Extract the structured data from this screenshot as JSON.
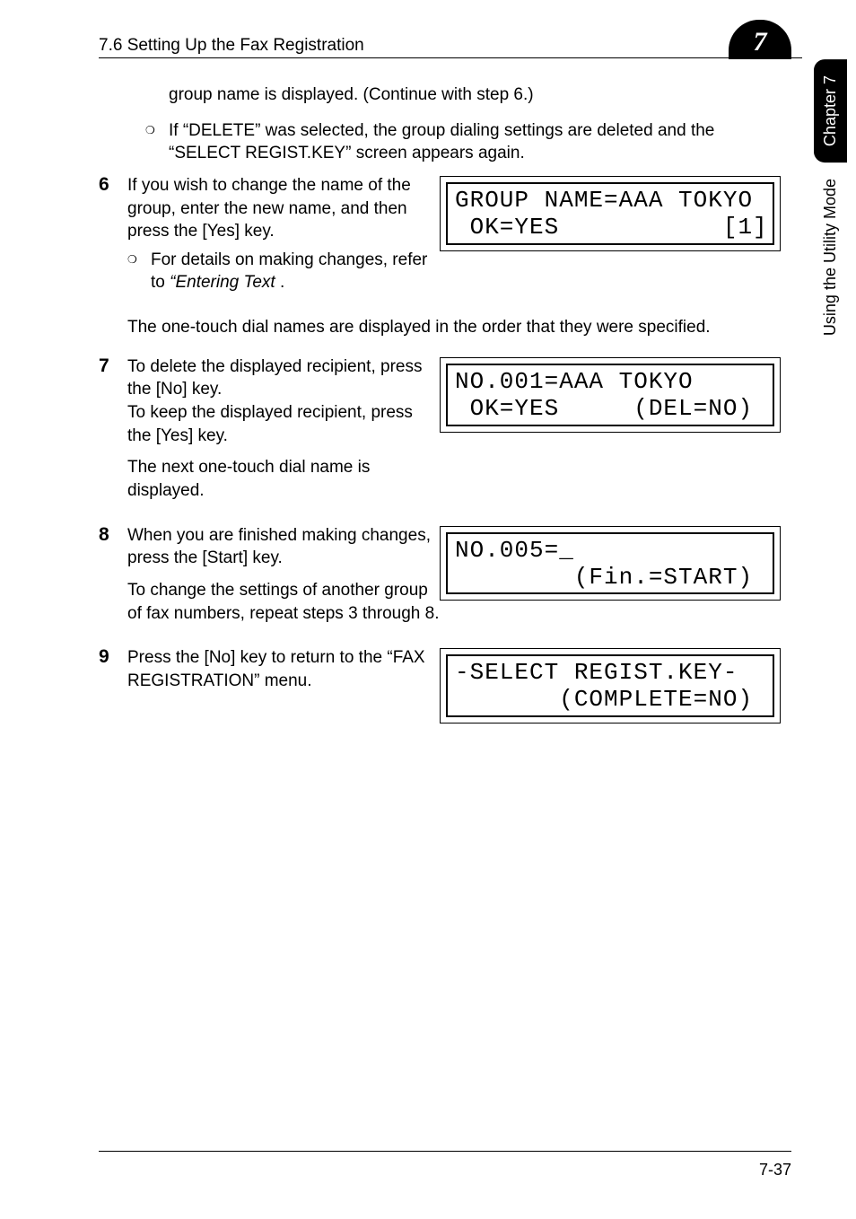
{
  "header": {
    "section": "7.6 Setting Up the Fax Registration",
    "chapter_num": "7"
  },
  "side_tabs": {
    "dark": "Chapter 7",
    "light": "Using the Utility Mode"
  },
  "intro_line": "group name is displayed. (Continue with step 6.)",
  "delete_bullet": "If “DELETE” was selected, the group dialing settings are deleted and the “SELECT REGIST.KEY” screen appears again.",
  "step6": {
    "num": "6",
    "text": "If you wish to change the name of the group, enter the new name, and then press the [Yes] key.",
    "sub_prefix": "For details on making changes, refer to ",
    "sub_italic": "“Entering Text",
    "sub_suffix": " .",
    "full": "The one-touch dial names are displayed in the order that they were specified.",
    "lcd_l1": "GROUP NAME=AAA TOKYO",
    "lcd_l2": " OK=YES           [1]"
  },
  "step7": {
    "num": "7",
    "text": "To delete the displayed recipient, press the [No] key.\nTo keep the displayed recipient, press the [Yes] key.",
    "after": "The next one-touch dial name is displayed.",
    "lcd_l1": "NO.001=AAA TOKYO",
    "lcd_l2": " OK=YES     (DEL=NO)"
  },
  "step8": {
    "num": "8",
    "text": "When you are finished making changes, press the [Start] key.",
    "after": "To change the settings of another group of fax numbers, repeat steps 3 through 8.",
    "lcd_l1": "NO.005=_",
    "lcd_l2": "        (Fin.=START)"
  },
  "step9": {
    "num": "9",
    "text": "Press the [No] key to return to the “FAX REGISTRATION” menu.",
    "lcd_l1": "-SELECT REGIST.KEY-",
    "lcd_l2": "       (COMPLETE=NO)"
  },
  "footer": "7-37"
}
